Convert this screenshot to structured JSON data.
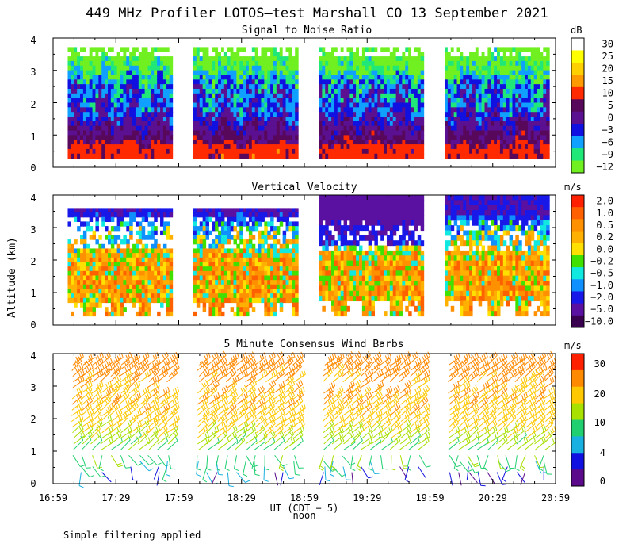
{
  "figure_title": "449 MHz Profiler LOTOS–test Marshall CO 13 September 2021",
  "footnote": "Simple filtering applied",
  "chart_data": [
    {
      "type": "heatmap",
      "title": "Signal to Noise Ratio",
      "ylabel": "Altitude (km)",
      "ylim": [
        0,
        4
      ],
      "yticks": [
        "0",
        "1",
        "2",
        "3",
        "4"
      ],
      "colorbar_unit": "dB",
      "colorbar_levels": [
        "30",
        "25",
        "20",
        "15",
        "10",
        "5",
        "0",
        "−3",
        "−6",
        "−9",
        "−12"
      ],
      "colorbar_colors": [
        "#ffffff",
        "#ffff00",
        "#ffd000",
        "#ff9a00",
        "#ff2a00",
        "#58085a",
        "#5a1090",
        "#1010e0",
        "#10a0ff",
        "#20e878",
        "#70f020"
      ],
      "altitude_profile_db": [
        {
          "altitude_km": 0.5,
          "snr_db": 10
        },
        {
          "altitude_km": 1.0,
          "snr_db": 5
        },
        {
          "altitude_km": 1.5,
          "snr_db": 0
        },
        {
          "altitude_km": 2.0,
          "snr_db": -3
        },
        {
          "altitude_km": 2.5,
          "snr_db": -3
        },
        {
          "altitude_km": 3.0,
          "snr_db": -9
        },
        {
          "altitude_km": 3.5,
          "snr_db": -12
        }
      ]
    },
    {
      "type": "heatmap",
      "title": "Vertical Velocity",
      "ylabel": "Altitude (km)",
      "ylim": [
        0,
        4
      ],
      "yticks": [
        "0",
        "1",
        "2",
        "3",
        "4"
      ],
      "colorbar_unit": "m/s",
      "colorbar_levels": [
        "2.0",
        "1.0",
        "0.5",
        "0.2",
        "0.0",
        "−0.2",
        "−0.5",
        "−1.0",
        "−2.0",
        "−5.0",
        "−10.0"
      ],
      "colorbar_colors": [
        "#ff2000",
        "#ff6000",
        "#ff9000",
        "#ffb000",
        "#ffe000",
        "#40e000",
        "#10e8e0",
        "#1090ff",
        "#1818e8",
        "#5a10a0",
        "#3a0050"
      ],
      "altitude_profile_ms": [
        {
          "altitude_km": 1.0,
          "w_ms": 0.5
        },
        {
          "altitude_km": 2.0,
          "w_ms": 0.5
        },
        {
          "altitude_km": 3.0,
          "w_ms": -0.5
        },
        {
          "altitude_km": 3.5,
          "w_ms": -2.0
        }
      ]
    },
    {
      "type": "scatter",
      "title": "5 Minute Consensus Wind Barbs",
      "ylabel": "Altitude (km)",
      "ylim": [
        0,
        4
      ],
      "yticks": [
        "0",
        "1",
        "2",
        "3",
        "4"
      ],
      "colorbar_unit": "m/s",
      "colorbar_levels": [
        "30",
        "20",
        "10",
        "4",
        "0"
      ],
      "colorbar_colors": [
        "#ff2000",
        "#ff8a00",
        "#ffc800",
        "#a8e000",
        "#20d070",
        "#18b0e0",
        "#1010e0",
        "#5a0a8a"
      ],
      "wind_speed_profile_ms": [
        {
          "altitude_km": 0.4,
          "speed_ms": 3
        },
        {
          "altitude_km": 1.0,
          "speed_ms": 10
        },
        {
          "altitude_km": 1.5,
          "speed_ms": 15
        },
        {
          "altitude_km": 2.0,
          "speed_ms": 20
        },
        {
          "altitude_km": 3.0,
          "speed_ms": 22
        },
        {
          "altitude_km": 3.5,
          "speed_ms": 25
        }
      ]
    }
  ],
  "x_axis": {
    "ticks": [
      "16:59",
      "17:29",
      "17:59",
      "18:29",
      "18:59",
      "19:29",
      "19:59",
      "20:29",
      "20:59"
    ],
    "xlabel": "UT  (CDT − 5)",
    "noon_label": "noon",
    "data_segments_ut": [
      [
        "17:06",
        "17:56"
      ],
      [
        "18:06",
        "18:56"
      ],
      [
        "19:06",
        "19:56"
      ],
      [
        "20:06",
        "20:56"
      ]
    ]
  }
}
